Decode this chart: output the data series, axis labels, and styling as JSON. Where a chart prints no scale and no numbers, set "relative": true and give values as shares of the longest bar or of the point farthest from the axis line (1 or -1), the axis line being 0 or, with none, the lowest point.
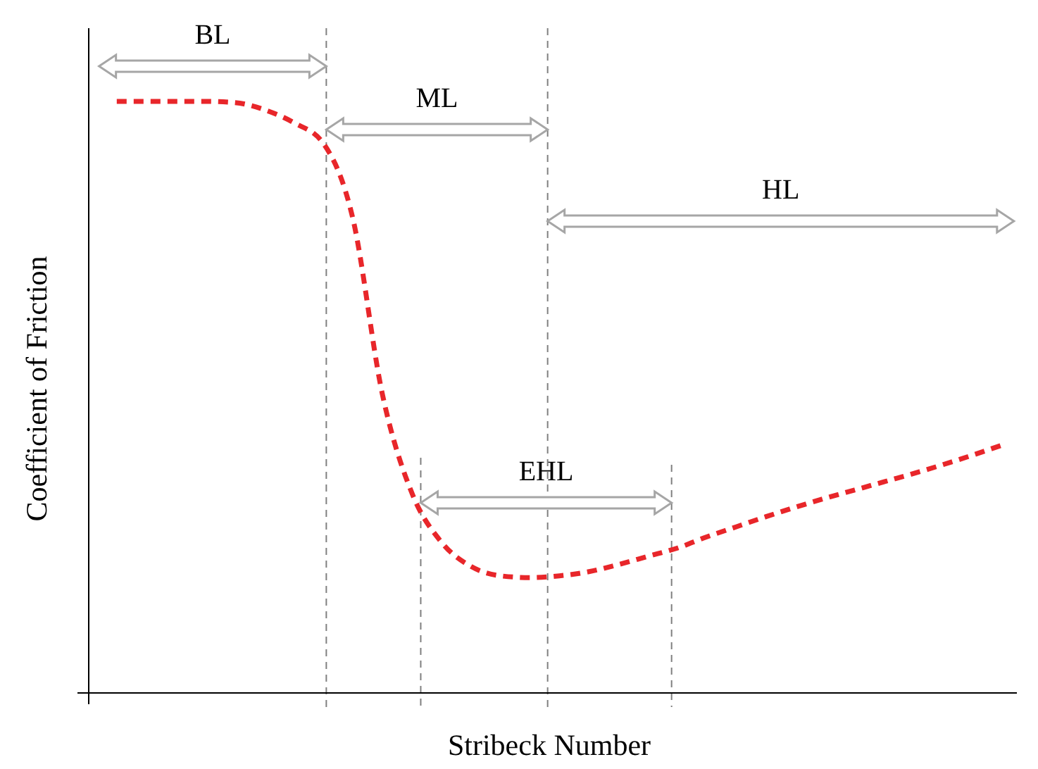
{
  "chart_data": {
    "type": "line",
    "relative": true,
    "xlabel": "Stribeck Number",
    "ylabel": "Coefficient of Friction",
    "categories": [
      null,
      null,
      null,
      null,
      null,
      null,
      null,
      null,
      null,
      null,
      null,
      null,
      null,
      null,
      null,
      null,
      null,
      null,
      null,
      null,
      null,
      null,
      null,
      null,
      null,
      null,
      null,
      null,
      null,
      null,
      null
    ],
    "series": [
      {
        "color": "#e8262a",
        "values": [
          1.0,
          1.0,
          1.0,
          1.0,
          0.998,
          0.986,
          0.964,
          0.929,
          0.802,
          0.505,
          0.338,
          0.255,
          0.214,
          0.198,
          0.195,
          0.198,
          0.205,
          0.217,
          0.231,
          0.245,
          0.264,
          0.281,
          0.298,
          0.314,
          0.329,
          0.343,
          0.357,
          0.371,
          0.386,
          0.402,
          0.419
        ]
      }
    ],
    "line_style": "dashed",
    "annotations": [
      "BL",
      "ML",
      "HL",
      "EHL"
    ]
  }
}
